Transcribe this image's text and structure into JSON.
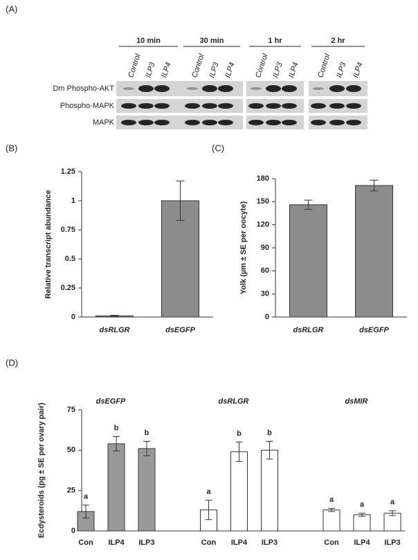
{
  "blot": {
    "label": "(A)",
    "groups": [
      {
        "name": "10 min",
        "lanes": [
          "Control",
          "ILP3",
          "ILP4"
        ]
      },
      {
        "name": "30 min",
        "lanes": [
          "Control",
          "ILP3",
          "ILP4"
        ]
      },
      {
        "name": "1 hr",
        "lanes": [
          "Control",
          "ILP3",
          "ILP4"
        ]
      },
      {
        "name": "2 hr",
        "lanes": [
          "Control",
          "ILP3",
          "ILP4"
        ]
      }
    ],
    "rows": [
      "Dm Phospho-AKT",
      "Phospho-MAPK",
      "MAPK"
    ]
  },
  "chart_data": [
    {
      "type": "bar",
      "panel": "(B)",
      "ylabel": "Relative transcript abundance",
      "categories": [
        "dsRLGR",
        "dsEGFP"
      ],
      "values": [
        0.01,
        1
      ],
      "errors": [
        0.005,
        0.17
      ],
      "color": "#8c8c8c",
      "ylim": [
        0,
        1.25
      ],
      "yticks": [
        0,
        0.25,
        0.5,
        0.75,
        1,
        1.25
      ]
    },
    {
      "type": "bar",
      "panel": "(C)",
      "ylabel": "Yolk (µm ± SE per oocyte)",
      "categories": [
        "dsRLGR",
        "dsEGFP"
      ],
      "values": [
        146,
        171
      ],
      "errors": [
        6,
        7
      ],
      "color": "#8c8c8c",
      "ylim": [
        0,
        180
      ],
      "yticks": [
        0,
        30,
        60,
        90,
        120,
        150,
        180
      ]
    },
    {
      "type": "grouped-bar",
      "panel": "(D)",
      "ylabel": "Ecdysteroids (pg ± SE per ovary pair)",
      "groups": [
        {
          "name": "dsEGFP",
          "categories": [
            "Con",
            "ILP4",
            "ILP3"
          ],
          "values": [
            12,
            54,
            51
          ],
          "errors": [
            4,
            4.5,
            4.5
          ],
          "letters": [
            "a",
            "b",
            "b"
          ],
          "color": "#999999"
        },
        {
          "name": "dsRLGR",
          "categories": [
            "Con",
            "ILP4",
            "ILP3"
          ],
          "values": [
            13,
            49,
            50
          ],
          "errors": [
            6,
            6,
            5.5
          ],
          "letters": [
            "a",
            "b",
            "b"
          ],
          "color": "#ffffff"
        },
        {
          "name": "dsMIR",
          "categories": [
            "Con",
            "ILP4",
            "ILP3"
          ],
          "values": [
            13,
            10,
            11
          ],
          "errors": [
            1,
            1,
            1.5
          ],
          "letters": [
            "a",
            "a",
            "a"
          ],
          "color": "#ffffff"
        }
      ],
      "ylim": [
        0,
        75
      ],
      "yticks": [
        0,
        25,
        50,
        75
      ]
    }
  ]
}
